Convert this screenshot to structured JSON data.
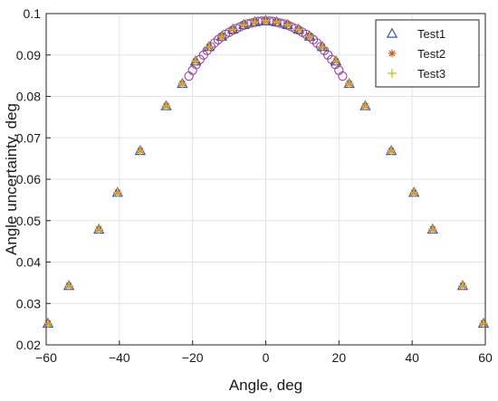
{
  "chart_data": {
    "type": "scatter",
    "title": "",
    "xlabel": "Angle, deg",
    "ylabel": "Angle uncertainty, deg",
    "xlim": [
      -60,
      60
    ],
    "ylim": [
      0.02,
      0.1
    ],
    "xticks": [
      -60,
      -40,
      -20,
      0,
      20,
      40,
      60
    ],
    "xtick_labels": [
      "−60",
      "−40",
      "−20",
      "0",
      "20",
      "40",
      "60"
    ],
    "yticks": [
      0.02,
      0.03,
      0.04,
      0.05,
      0.06,
      0.07,
      0.08,
      0.09,
      0.1
    ],
    "ytick_labels": [
      "0.02",
      "0.03",
      "0.04",
      "0.05",
      "0.06",
      "0.07",
      "0.08",
      "0.09",
      "0.1"
    ],
    "grid": true,
    "legend_position": "top-right",
    "x": [
      -59.5,
      -53.8,
      -45.6,
      -40.5,
      -34.3,
      -27.2,
      -22.8,
      -19.2,
      -15.5,
      -12.0,
      -9.0,
      -6.0,
      -3.0,
      0.0,
      3.0,
      6.0,
      9.0,
      12.0,
      15.5,
      19.2,
      22.8,
      27.2,
      34.3,
      40.5,
      45.6,
      53.8,
      59.5
    ],
    "series": [
      {
        "name": "Test1",
        "marker": "triangle",
        "color": "#2f5fa8",
        "values": [
          0.0252,
          0.0343,
          0.0479,
          0.0568,
          0.0669,
          0.0777,
          0.0831,
          0.0885,
          0.092,
          0.0945,
          0.0962,
          0.0973,
          0.098,
          0.0983,
          0.098,
          0.0973,
          0.0962,
          0.0945,
          0.092,
          0.0885,
          0.0831,
          0.0777,
          0.0669,
          0.0568,
          0.0479,
          0.0343,
          0.0252
        ]
      },
      {
        "name": "Test2",
        "marker": "asterisk",
        "color": "#c85a1e",
        "values": [
          0.0252,
          0.0343,
          0.0479,
          0.0568,
          0.0669,
          0.0777,
          0.0831,
          0.0885,
          0.092,
          0.0945,
          0.0962,
          0.0973,
          0.098,
          0.0983,
          0.098,
          0.0973,
          0.0962,
          0.0945,
          0.092,
          0.0885,
          0.0831,
          0.0777,
          0.0669,
          0.0568,
          0.0479,
          0.0343,
          0.0252
        ]
      },
      {
        "name": "Test3",
        "marker": "plus",
        "color": "#d8b22b",
        "values": [
          0.0252,
          0.0343,
          0.0479,
          0.0568,
          0.0669,
          0.0777,
          0.0831,
          0.0885,
          0.092,
          0.0945,
          0.0962,
          0.0973,
          0.098,
          0.0983,
          0.098,
          0.0973,
          0.0962,
          0.0945,
          0.092,
          0.0885,
          0.0831,
          0.0777,
          0.0669,
          0.0568,
          0.0479,
          0.0343,
          0.0252
        ]
      }
    ],
    "extra_series": {
      "marker": "circle",
      "color": "#a040a0",
      "x": [
        -21.0,
        -20.0,
        -19.0,
        -18.0,
        -17.0,
        -16.0,
        -15.0,
        -14.0,
        -13.0,
        -12.0,
        -11.0,
        -10.0,
        -9.0,
        -8.0,
        -7.0,
        -6.0,
        -5.0,
        -4.0,
        -3.0,
        -2.0,
        -1.0,
        0.0,
        1.0,
        2.0,
        3.0,
        4.0,
        5.0,
        6.0,
        7.0,
        8.0,
        9.0,
        10.0,
        11.0,
        12.0,
        13.0,
        14.0,
        15.0,
        16.0,
        17.0,
        18.0,
        19.0,
        20.0,
        21.0
      ],
      "values": [
        0.0849,
        0.0863,
        0.0877,
        0.0889,
        0.09,
        0.0911,
        0.092,
        0.0929,
        0.0937,
        0.0944,
        0.095,
        0.0955,
        0.096,
        0.0964,
        0.0968,
        0.0972,
        0.0975,
        0.0977,
        0.0979,
        0.0981,
        0.0982,
        0.0982,
        0.0982,
        0.0981,
        0.0979,
        0.0977,
        0.0975,
        0.0972,
        0.0968,
        0.0964,
        0.096,
        0.0955,
        0.095,
        0.0944,
        0.0937,
        0.0929,
        0.092,
        0.0911,
        0.09,
        0.0889,
        0.0877,
        0.0863,
        0.0849
      ]
    }
  }
}
